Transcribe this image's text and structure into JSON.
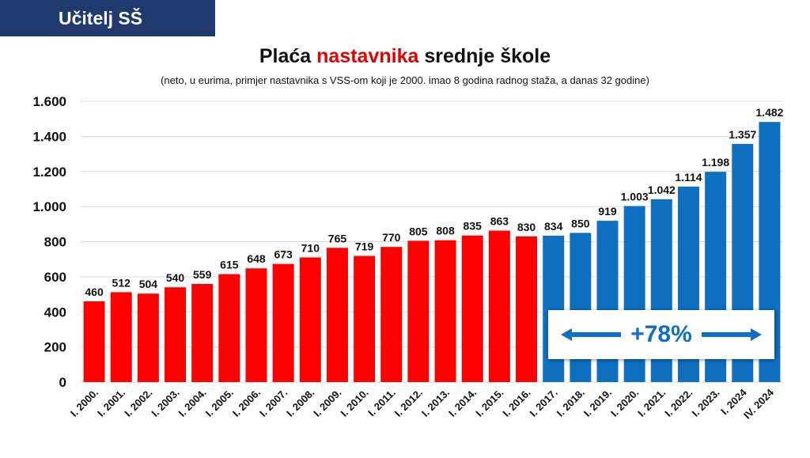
{
  "banner": {
    "label": "Učitelj SŠ"
  },
  "title": {
    "part1": "Plaća ",
    "highlight": "nastavnika",
    "part2": " srednje škole"
  },
  "subtitle": "(neto, u eurima, primjer nastavnika s VSS-om koji je 2000. imao 8 godina radnog staža, a danas 32 godine)",
  "callout": {
    "text": "+78%"
  },
  "colors": {
    "red": "#ff0000",
    "blue": "#0f6fc0",
    "banner": "#1f3a6e"
  },
  "chart_data": {
    "type": "bar",
    "categories": [
      "I. 2000.",
      "I. 2001.",
      "I. 2002.",
      "I. 2003.",
      "I. 2004.",
      "I. 2005.",
      "I. 2006.",
      "I. 2007.",
      "I. 2008.",
      "I. 2009.",
      "I. 2010.",
      "I. 2011.",
      "I. 2012.",
      "I. 2013.",
      "I. 2014.",
      "I. 2015.",
      "I. 2016.",
      "I. 2017.",
      "I. 2018.",
      "I. 2019.",
      "I. 2020.",
      "I. 2021.",
      "I. 2022.",
      "I. 2023.",
      "I. 2024",
      "IV. 2024"
    ],
    "values": [
      460,
      512,
      504,
      540,
      559,
      615,
      648,
      673,
      710,
      765,
      719,
      770,
      805,
      808,
      835,
      863,
      830,
      834,
      850,
      919,
      1003,
      1042,
      1114,
      1198,
      1357,
      1482
    ],
    "value_labels": [
      "460",
      "512",
      "504",
      "540",
      "559",
      "615",
      "648",
      "673",
      "710",
      "765",
      "719",
      "770",
      "805",
      "808",
      "835",
      "863",
      "830",
      "834",
      "850",
      "919",
      "1.003",
      "1.042",
      "1.114",
      "1.198",
      "1.357",
      "1.482"
    ],
    "bar_colors": [
      "red",
      "red",
      "red",
      "red",
      "red",
      "red",
      "red",
      "red",
      "red",
      "red",
      "red",
      "red",
      "red",
      "red",
      "red",
      "red",
      "red",
      "blue",
      "blue",
      "blue",
      "blue",
      "blue",
      "blue",
      "blue",
      "blue",
      "blue"
    ],
    "ylim": [
      0,
      1600
    ],
    "yticks": [
      0,
      200,
      400,
      600,
      800,
      1000,
      1200,
      1400,
      1600
    ],
    "ytick_labels": [
      "0",
      "200",
      "400",
      "600",
      "800",
      "1.000",
      "1.200",
      "1.400",
      "1.600"
    ],
    "grid": true,
    "legend": "none"
  }
}
